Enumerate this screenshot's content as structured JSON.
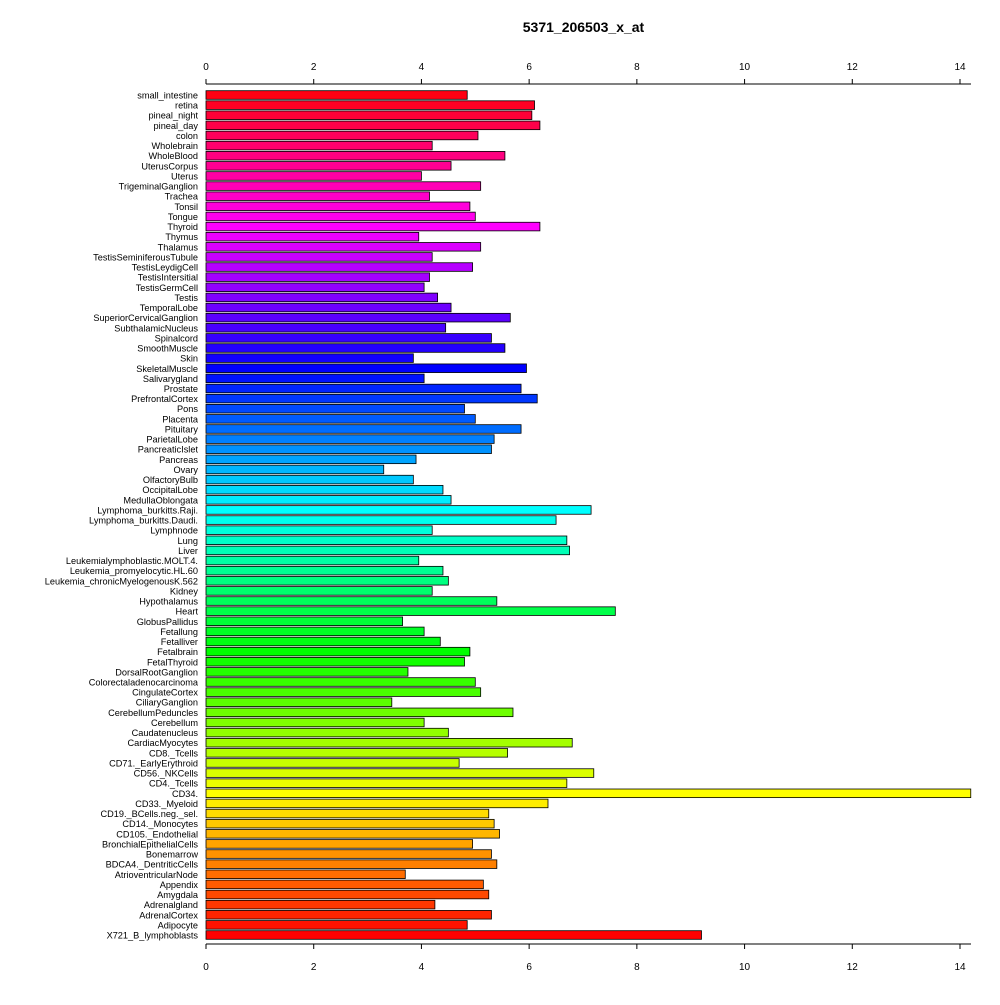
{
  "chart_data": {
    "type": "bar",
    "orientation": "horizontal",
    "title": "5371_206503_x_at",
    "xlabel": "",
    "ylabel": "",
    "xlim": [
      0,
      14
    ],
    "x_ticks": [
      0,
      2,
      4,
      6,
      8,
      10,
      12,
      14
    ],
    "grid": false,
    "legend": "none",
    "bar_border_color": "#000000",
    "color_scheme": "rainbow",
    "categories": [
      "small_intestine",
      "retina",
      "pineal_night",
      "pineal_day",
      "colon",
      "Wholebrain",
      "WholeBlood",
      "UterusCorpus",
      "Uterus",
      "TrigeminalGanglion",
      "Trachea",
      "Tonsil",
      "Tongue",
      "Thyroid",
      "Thymus",
      "Thalamus",
      "TestisSeminiferousTubule",
      "TestisLeydigCell",
      "TestisIntersitial",
      "TestisGermCell",
      "Testis",
      "TemporalLobe",
      "SuperiorCervicalGanglion",
      "SubthalamicNucleus",
      "Spinalcord",
      "SmoothMuscle",
      "Skin",
      "SkeletalMuscle",
      "Salivarygland",
      "Prostate",
      "PrefrontalCortex",
      "Pons",
      "Placenta",
      "Pituitary",
      "ParietalLobe",
      "PancreaticIslet",
      "Pancreas",
      "Ovary",
      "OlfactoryBulb",
      "OccipitalLobe",
      "MedullaOblongata",
      "Lymphoma_burkitts.Raji.",
      "Lymphoma_burkitts.Daudi.",
      "Lymphnode",
      "Lung",
      "Liver",
      "Leukemialymphoblastic.MOLT.4.",
      "Leukemia_promyelocytic.HL.60",
      "Leukemia_chronicMyelogenousK.562",
      "Kidney",
      "Hypothalamus",
      "Heart",
      "GlobusPallidus",
      "Fetallung",
      "Fetalliver",
      "Fetalbrain",
      "FetalThyroid",
      "DorsalRootGanglion",
      "Colorectaladenocarcinoma",
      "CingulateCortex",
      "CiliaryGanglion",
      "CerebellumPeduncles",
      "Cerebellum",
      "Caudatenucleus",
      "CardiacMyocytes",
      "CD8._Tcells",
      "CD71._EarlyErythroid",
      "CD56._NKCells",
      "CD4._Tcells",
      "CD34.",
      "CD33._Myeloid",
      "CD19._BCells.neg._sel.",
      "CD14._Monocytes",
      "CD105._Endothelial",
      "BronchialEpithelialCells",
      "Bonemarrow",
      "BDCA4._DentriticCells",
      "AtrioventricularNode",
      "Appendix",
      "Amygdala",
      "Adrenalgland",
      "AdrenalCortex",
      "Adipocyte",
      "X721_B_lymphoblasts"
    ],
    "values": [
      4.85,
      6.1,
      6.05,
      6.2,
      5.05,
      4.2,
      5.55,
      4.55,
      4.0,
      5.1,
      4.15,
      4.9,
      5.0,
      6.2,
      3.95,
      5.1,
      4.2,
      4.95,
      4.15,
      4.05,
      4.3,
      4.55,
      5.65,
      4.45,
      5.3,
      5.55,
      3.85,
      5.95,
      4.05,
      5.85,
      6.15,
      4.8,
      5.0,
      5.85,
      5.35,
      5.3,
      3.9,
      3.3,
      3.85,
      4.4,
      4.55,
      7.15,
      6.5,
      4.2,
      6.7,
      6.75,
      3.95,
      4.4,
      4.5,
      4.2,
      5.4,
      7.6,
      3.65,
      4.05,
      4.35,
      4.9,
      4.8,
      3.75,
      5.0,
      5.1,
      3.45,
      5.7,
      4.05,
      4.5,
      6.8,
      5.6,
      4.7,
      7.2,
      6.7,
      14.2,
      6.35,
      5.25,
      5.35,
      5.45,
      4.95,
      5.3,
      5.4,
      3.7,
      5.15,
      5.25,
      4.25,
      5.3,
      4.85,
      9.2
    ]
  }
}
